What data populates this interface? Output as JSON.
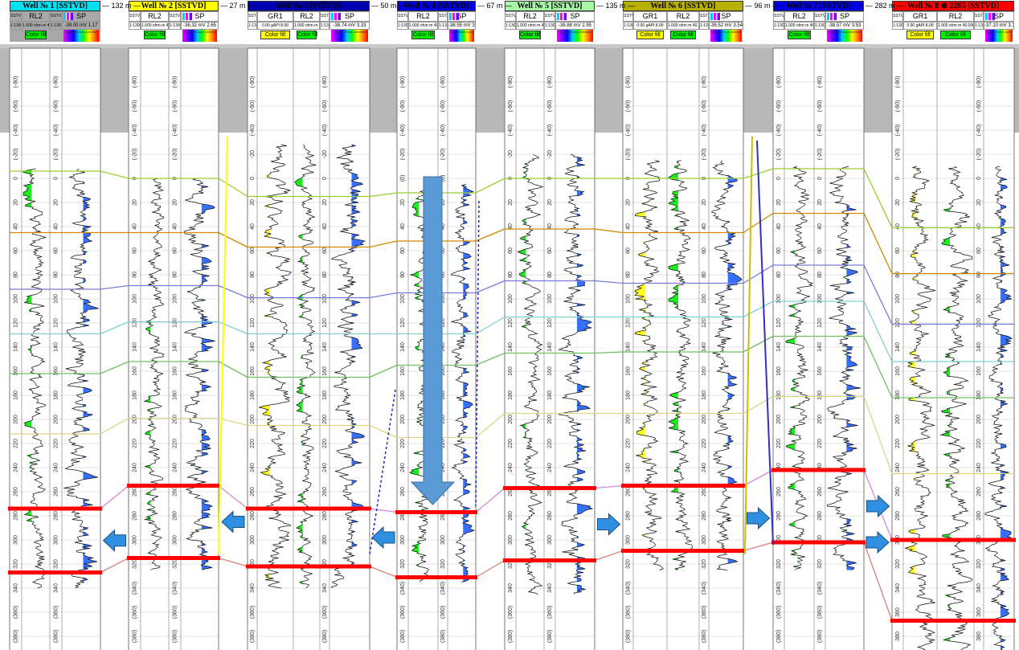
{
  "wells": [
    {
      "title": "Well № 1  [SSTVD]",
      "title_color": "#00e0f0",
      "header_bg": "#a8a8a8",
      "tracks": [
        "SSTVD",
        "RL2",
        "SSTVD",
        "SP"
      ],
      "scale": "1:1300",
      "rl2_scale": "1.000 ohm·m 40.000",
      "sp_scale": "-39.00 mV 1.17",
      "fill_label": "Color fill",
      "sp_fill_label": "Spontaneous potential",
      "log_range": [
        -8,
        340
      ]
    },
    {
      "title": "Well № 2  [SSTVD]",
      "title_color": "#ffff00",
      "header_bg": "#ffffff",
      "tracks": [
        "SSTVD",
        "RL2",
        "SSTVD",
        "SP"
      ],
      "scale": "1:1300",
      "rl2_scale": "1.000 ohm·m 40.000",
      "sp_scale": "-36.32 mV 2.65",
      "fill_label": "Color fill",
      "sp_fill_label": "Spontaneous potential",
      "log_range": [
        0,
        325
      ]
    },
    {
      "title": "Well № 3  [SSTVD]",
      "title_color": "#0000b0",
      "header_bg": "#ffffff",
      "tracks": [
        "SSTVD",
        "GR1",
        "RL2",
        "SSTVD",
        "SP"
      ],
      "scale": "1:1300",
      "gr1_scale": "0.00 gAPI 8.00",
      "rl2_scale": "1.000 ohm·m 40.000",
      "sp_scale": "-38.74 mV 3.33",
      "fill_label": "Color fill",
      "sp_fill_label": "Spontaneous potential",
      "log_range": [
        -28,
        340
      ]
    },
    {
      "title": "Well № 4  [SSTVD]",
      "title_color": "#0000e0",
      "header_bg": "#ffffff",
      "tracks": [
        "SSTVD",
        "RL2",
        "SSTVD",
        "SP"
      ],
      "scale": "1:1300",
      "rl2_scale": "1.000 ohm·m 40.000",
      "sp_scale": "-38.55 mV 3.46",
      "fill_label": "Color fill",
      "sp_fill_label": "Spontaneous potential",
      "log_range": [
        5,
        335
      ]
    },
    {
      "title": "Well № 5  [SSTVD]",
      "title_color": "#a8f8a8",
      "header_bg": "#ffffff",
      "tracks": [
        "SSTVD",
        "RL2",
        "SSTVD",
        "SP"
      ],
      "scale": "1:1300",
      "rl2_scale": "1.000 ohm·m 40.000",
      "sp_scale": "-36.88 mV 2.95",
      "fill_label": "Color fill",
      "sp_fill_label": "Spontaneous potential",
      "log_range": [
        -20,
        345
      ]
    },
    {
      "title": "Well № 6  [SSTVD]",
      "title_color": "#b8b000",
      "header_bg": "#ffffff",
      "tracks": [
        "SSTVD",
        "GR1",
        "RL2",
        "SSTVD",
        "SP"
      ],
      "scale": "1:1300",
      "gr1_scale": "0.00 gAPI 8.00",
      "rl2_scale": "1.000 ohm·m 40.000",
      "sp_scale": "-38.52 mV 3.54",
      "fill_label": "Color fill",
      "sp_fill_label": "Spontaneous potential",
      "log_range": [
        -15,
        325
      ]
    },
    {
      "title": "Well № 7  [SSTVD]",
      "title_color": "#0000e0",
      "header_bg": "#ffffff",
      "tracks": [
        "SSTVD",
        "RL2",
        "SSTVD",
        "SP"
      ],
      "scale": "1:1300",
      "rl2_scale": "1.000 ohm·m 40.000",
      "sp_scale": "-38.57 mV 3.53",
      "fill_label": "Color fill",
      "sp_fill_label": "Spontaneous potential",
      "log_range": [
        -10,
        325
      ]
    },
    {
      "title": "Well № 8 ⊕ 2205 [SSTVD]",
      "title_color": "#ff0000",
      "header_bg": "#ffffff",
      "tracks": [
        "SSTVD",
        "GR1",
        "RL2",
        "SSTVD",
        "SP"
      ],
      "scale": "1:1300",
      "gr1_scale": "0.00 gAPI 8.00",
      "rl2_scale": "1.000 ohm·m 40.000",
      "sp_scale": "-37.10 mV 3.10",
      "fill_label": "Color fill",
      "sp_fill_label": "Spontaneous potential",
      "log_range": [
        -10,
        395
      ]
    }
  ],
  "distances": [
    "132 m",
    "27 m",
    "50 m",
    "67 m",
    "135 m",
    "96 m",
    "282 m"
  ],
  "depth_ticks": [
    -80,
    -60,
    -40,
    -20,
    0,
    20,
    40,
    60,
    80,
    100,
    120,
    140,
    160,
    180,
    200,
    220,
    240,
    260,
    280,
    300,
    320,
    340,
    360,
    380
  ],
  "horizons": [
    {
      "color": "#9acd32",
      "depths": [
        -6,
        0,
        15,
        12,
        0,
        0,
        -8,
        41
      ]
    },
    {
      "color": "#d08a00",
      "depths": [
        45,
        45,
        57,
        52,
        42,
        45,
        29,
        79
      ]
    },
    {
      "color": "#7a7ad8",
      "depths": [
        92,
        89,
        99,
        95,
        85,
        87,
        72,
        121
      ]
    },
    {
      "color": "#80d0d0",
      "depths": [
        129,
        119,
        129,
        129,
        115,
        115,
        102,
        152
      ]
    },
    {
      "color": "#70c060",
      "depths": [
        162,
        152,
        165,
        155,
        145,
        144,
        131,
        182
      ]
    },
    {
      "color": "#d8d888",
      "depths": [
        212,
        199,
        205,
        215,
        195,
        195,
        181,
        245
      ]
    },
    {
      "color": "#d888d8",
      "depths": [
        274,
        255,
        274,
        277,
        257,
        255,
        242,
        300
      ]
    },
    {
      "color": "#d88080",
      "depths": [
        327,
        315,
        322,
        331,
        317,
        309,
        302,
        367
      ]
    }
  ],
  "reservoir_markers": {
    "color": "#ff0000",
    "top_horizon": 6,
    "bottom_horizon": 7
  },
  "arrows": [
    {
      "direction": "left",
      "between": [
        0,
        1
      ]
    },
    {
      "direction": "left",
      "between": [
        1,
        2
      ]
    },
    {
      "direction": "left",
      "between": [
        2,
        3
      ]
    },
    {
      "direction": "right",
      "between": [
        4,
        5
      ]
    },
    {
      "direction": "right",
      "between": [
        5,
        6
      ]
    },
    {
      "direction": "right",
      "between": [
        6,
        7
      ]
    },
    {
      "direction": "right",
      "between": [
        7,
        8
      ]
    }
  ],
  "colors": {
    "arrow": "#2f8fe0",
    "big_arrow": "#5b9bd5",
    "gr_fill": "#ffff00",
    "rl_fill": "#00ee00",
    "sp_fill": "#2060ff",
    "gap_gray": "#b8b8b8"
  }
}
